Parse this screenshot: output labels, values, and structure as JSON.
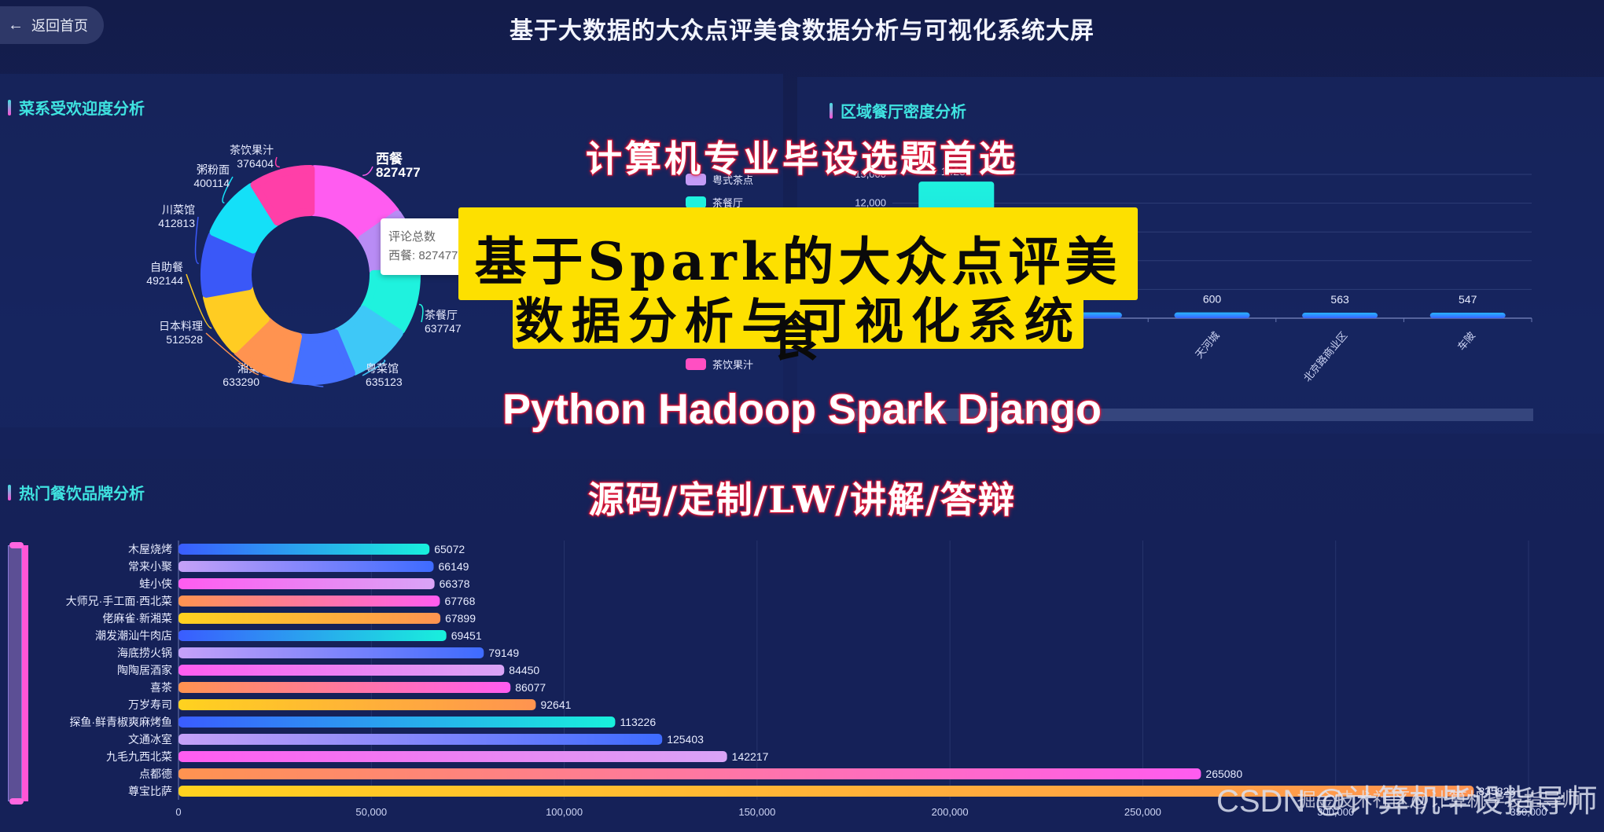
{
  "header": {
    "back_label": "返回首页",
    "back_icon": "arrow-left-icon",
    "title": "基于大数据的大众点评美食数据分析与可视化系统大屏"
  },
  "panels": {
    "cuisine": {
      "title": "菜系受欢迎度分析"
    },
    "region": {
      "title": "区域餐厅密度分析"
    },
    "brand": {
      "title": "热门餐饮品牌分析"
    }
  },
  "tooltip": {
    "title": "评论总数",
    "value": "西餐: 827477"
  },
  "region_legend": [
    {
      "label": "粤式茶点",
      "color": "#c39bf6"
    },
    {
      "label": "茶餐厅",
      "color": "#1ff2de"
    },
    {
      "label": "茶饮果汁",
      "color": "#ff4fc2"
    }
  ],
  "overlay": {
    "tagline": "计算机专业毕设选题首选",
    "headline_1": "基于Spark的大众点评美食",
    "headline_2": "数据分析与可视化系统",
    "tech_stack": "Python Hadoop Spark Django",
    "services": "源码/定制/LW/讲解/答辩",
    "watermark": "CSDN @计算机毕设指导师",
    "watermark_inner": "掘金技术社区@计算机毕设指导师"
  },
  "chart_data": [
    {
      "type": "pie",
      "title": "菜系受欢迎度分析",
      "subtype": "donut",
      "series_name": "评论总数",
      "slices": [
        {
          "label": "西餐",
          "value": 827477,
          "color": "#ff5cf0"
        },
        {
          "label": "粤式茶点",
          "value": null,
          "color": "#b98cf5"
        },
        {
          "label": "茶餐厅",
          "value": 637747,
          "color": "#1ff2de"
        },
        {
          "label": "粤菜馆",
          "value": 635123,
          "color": "#3ec8f7"
        },
        {
          "label": "湘菜",
          "value": 633290,
          "color": "#4570ff"
        },
        {
          "label": "日本料理",
          "value": 512528,
          "color": "#ff9350"
        },
        {
          "label": "自助餐",
          "value": 492144,
          "color": "#ffcc22"
        },
        {
          "label": "川菜馆",
          "value": 412813,
          "color": "#3a58f8"
        },
        {
          "label": "粥粉面",
          "value": 400114,
          "color": "#14e0f8"
        },
        {
          "label": "茶饮果汁",
          "value": 376404,
          "color": "#ff3fa8"
        }
      ]
    },
    {
      "type": "bar",
      "title": "区域餐厅密度分析",
      "categories": [
        "(hidden)",
        "(hidden)",
        "天河城",
        "北京路商业区",
        "车陂"
      ],
      "values": [
        14252,
        600,
        600,
        563,
        547
      ],
      "value_labels": [
        "14252",
        "…00",
        "600",
        "563",
        "547"
      ],
      "yticks": [
        12000,
        15000
      ],
      "ylim": [
        0,
        15000
      ],
      "grid": true
    },
    {
      "type": "bar",
      "orientation": "horizontal",
      "title": "热门餐饮品牌分析",
      "categories": [
        "木屋烧烤",
        "常来小聚",
        "蛙小侠",
        "大师兄·手工面·西北菜",
        "佬麻雀·新湘菜",
        "潮发潮汕牛肉店",
        "海底捞火锅",
        "陶陶居酒家",
        "喜茶",
        "万岁寿司",
        "探鱼·鲜青椒爽麻烤鱼",
        "文通冰室",
        "九毛九西北菜",
        "点都德",
        "尊宝比萨"
      ],
      "values": [
        65072,
        66149,
        66378,
        67768,
        67899,
        69451,
        79149,
        84450,
        86077,
        92641,
        113226,
        125403,
        142217,
        265080,
        335823
      ],
      "xticks": [
        0,
        50000,
        100000,
        150000,
        200000,
        250000,
        300000,
        350000
      ],
      "xtick_labels": [
        "0",
        "50,000",
        "100,000",
        "150,000",
        "200,000",
        "250,000",
        "300,000",
        "350,000"
      ],
      "xlim": [
        0,
        350000
      ],
      "grid": true
    }
  ]
}
